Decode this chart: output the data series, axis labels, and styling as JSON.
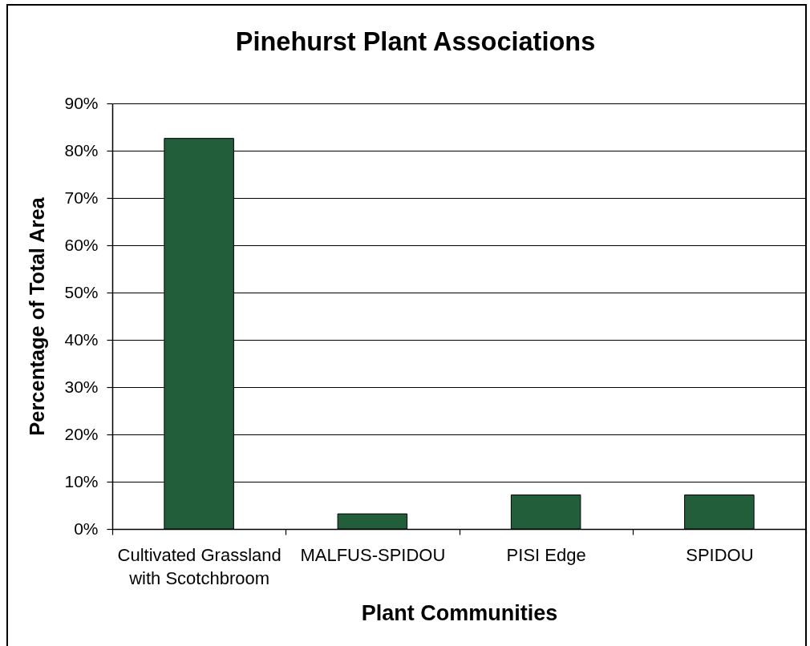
{
  "chart_data": {
    "type": "bar",
    "title": "Pinehurst Plant Associations",
    "xlabel": "Plant Communities",
    "ylabel": "Percentage of Total Area",
    "categories": [
      "Cultivated Grassland with Scotchbroom",
      "MALFUS-SPIDOU",
      "PISI Edge",
      "SPIDOU"
    ],
    "values": [
      82.6,
      3.2,
      7.2,
      7.2
    ],
    "color": "#225e3a",
    "ylim": [
      0,
      90
    ],
    "yticks": [
      {
        "value": 0,
        "label": "0%"
      },
      {
        "value": 10,
        "label": "10%"
      },
      {
        "value": 20,
        "label": "20%"
      },
      {
        "value": 30,
        "label": "30%"
      },
      {
        "value": 40,
        "label": "40%"
      },
      {
        "value": 50,
        "label": "50%"
      },
      {
        "value": 60,
        "label": "60%"
      },
      {
        "value": 70,
        "label": "70%"
      },
      {
        "value": 80,
        "label": "80%"
      },
      {
        "value": 90,
        "label": "90%"
      }
    ],
    "grid": "y"
  }
}
